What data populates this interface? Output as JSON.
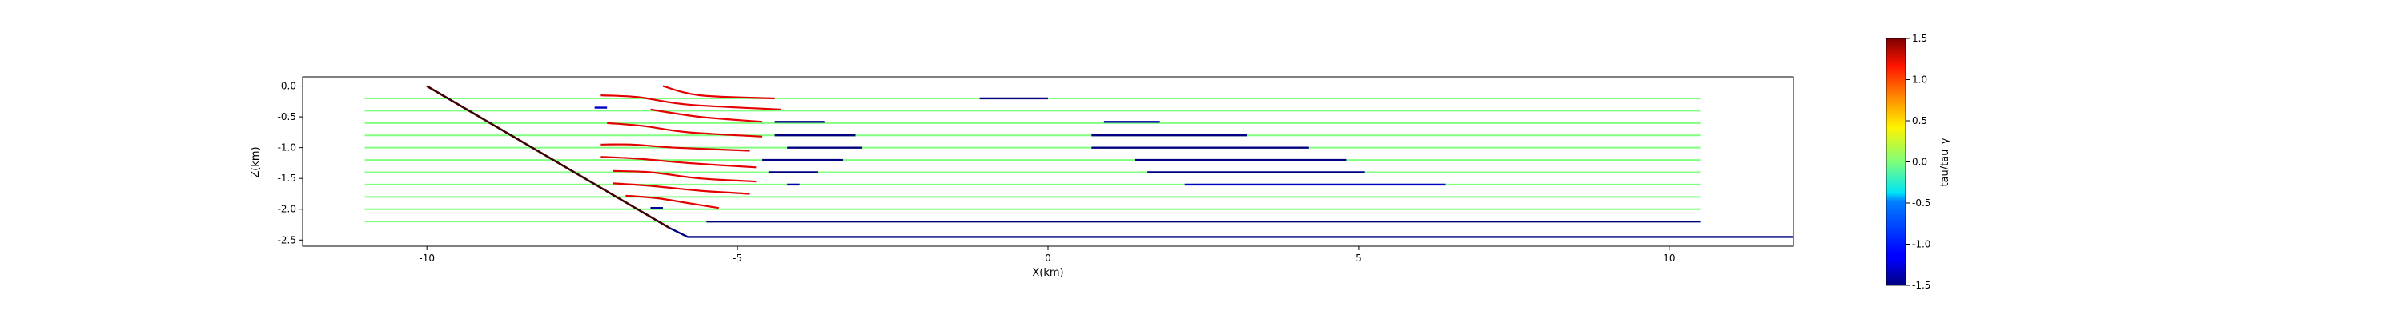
{
  "chart_data": {
    "type": "line",
    "title": "",
    "xlabel": "X(km)",
    "ylabel": "Z(km)",
    "xlim": [
      -12.0,
      12.0
    ],
    "ylim": [
      -2.6,
      0.15
    ],
    "x_ticks": [
      "-10",
      "-5",
      "0",
      "5",
      "10"
    ],
    "x_tick_values": [
      -10,
      -5,
      0,
      5,
      10
    ],
    "y_ticks": [
      "0.0",
      "-0.5",
      "-1.0",
      "-1.5",
      "-2.0",
      "-2.5"
    ],
    "y_tick_values": [
      0.0,
      -0.5,
      -1.0,
      -1.5,
      -2.0,
      -2.5
    ],
    "colorbar": {
      "label": "tau/tau_y",
      "min": -1.5,
      "max": 1.5,
      "colormap": "jet",
      "ticks": [
        "1.5",
        "1.0",
        "0.5",
        "0.0",
        "-0.5",
        "-1.0",
        "-1.5"
      ],
      "tick_values": [
        1.5,
        1.0,
        0.5,
        0.0,
        -0.5,
        -1.0,
        -1.5
      ]
    },
    "boundary": {
      "fault": {
        "points": [
          [
            -10.0,
            0.0
          ],
          [
            -6.1,
            -2.3
          ],
          [
            -5.8,
            -2.45
          ],
          [
            12.0,
            -2.45
          ]
        ],
        "value": 1.5,
        "value_lower": -1.5
      },
      "bottom_layer": {
        "points": [
          [
            -5.5,
            -2.2
          ],
          [
            10.5,
            -2.2
          ]
        ],
        "value": -1.5
      }
    },
    "background_lines": {
      "x_start": -11.0,
      "x_end": 10.5,
      "z": [
        -0.2,
        -0.4,
        -0.6,
        -0.8,
        -1.0,
        -1.2,
        -1.4,
        -1.6,
        -1.8,
        -2.0,
        -2.2
      ],
      "value": 0.0
    },
    "curved_segments": [
      {
        "points": [
          [
            -6.2,
            0.0
          ],
          [
            -5.6,
            -0.15
          ],
          [
            -4.4,
            -0.2
          ]
        ],
        "value": 1.2
      },
      {
        "points": [
          [
            -7.2,
            -0.15
          ],
          [
            -6.6,
            -0.18
          ],
          [
            -5.8,
            -0.3
          ],
          [
            -4.3,
            -0.38
          ]
        ],
        "value": 1.2
      },
      {
        "points": [
          [
            -6.4,
            -0.38
          ],
          [
            -5.6,
            -0.5
          ],
          [
            -4.6,
            -0.58
          ]
        ],
        "value": 1.2
      },
      {
        "points": [
          [
            -7.1,
            -0.6
          ],
          [
            -6.5,
            -0.65
          ],
          [
            -5.8,
            -0.75
          ],
          [
            -4.6,
            -0.82
          ]
        ],
        "value": 1.2
      },
      {
        "points": [
          [
            -7.2,
            -0.95
          ],
          [
            -6.7,
            -0.95
          ],
          [
            -6.0,
            -1.0
          ],
          [
            -4.8,
            -1.05
          ]
        ],
        "value": 1.2
      },
      {
        "points": [
          [
            -7.2,
            -1.15
          ],
          [
            -6.6,
            -1.18
          ],
          [
            -5.8,
            -1.25
          ],
          [
            -4.7,
            -1.32
          ]
        ],
        "value": 1.2
      },
      {
        "points": [
          [
            -7.0,
            -1.38
          ],
          [
            -6.4,
            -1.4
          ],
          [
            -5.6,
            -1.5
          ],
          [
            -4.7,
            -1.55
          ]
        ],
        "value": 1.2
      },
      {
        "points": [
          [
            -7.0,
            -1.58
          ],
          [
            -6.4,
            -1.62
          ],
          [
            -5.6,
            -1.7
          ],
          [
            -4.8,
            -1.75
          ]
        ],
        "value": 1.2
      },
      {
        "points": [
          [
            -6.8,
            -1.78
          ],
          [
            -6.3,
            -1.82
          ],
          [
            -5.8,
            -1.9
          ],
          [
            -5.3,
            -1.98
          ]
        ],
        "value": 1.2
      }
    ],
    "flat_segments": [
      {
        "x": [
          -1.1,
          0.0
        ],
        "z": -0.2,
        "value": -1.5
      },
      {
        "x": [
          -7.3,
          -7.1
        ],
        "z": -0.35,
        "value": -1.3
      },
      {
        "x": [
          -4.4,
          -3.6
        ],
        "z": -0.58,
        "value": -1.5
      },
      {
        "x": [
          0.9,
          1.8
        ],
        "z": -0.58,
        "value": -1.4
      },
      {
        "x": [
          -4.4,
          -3.1
        ],
        "z": -0.8,
        "value": -1.5
      },
      {
        "x": [
          0.7,
          3.2
        ],
        "z": -0.8,
        "value": -1.5
      },
      {
        "x": [
          -4.2,
          -3.0
        ],
        "z": -1.0,
        "value": -1.5
      },
      {
        "x": [
          0.7,
          4.2
        ],
        "z": -1.0,
        "value": -1.5
      },
      {
        "x": [
          -4.6,
          -3.3
        ],
        "z": -1.2,
        "value": -1.5
      },
      {
        "x": [
          1.4,
          4.8
        ],
        "z": -1.2,
        "value": -1.5
      },
      {
        "x": [
          -4.5,
          -3.7
        ],
        "z": -1.4,
        "value": -1.5
      },
      {
        "x": [
          1.6,
          5.1
        ],
        "z": -1.4,
        "value": -1.5
      },
      {
        "x": [
          -4.2,
          -4.0
        ],
        "z": -1.6,
        "value": -1.4
      },
      {
        "x": [
          2.2,
          6.4
        ],
        "z": -1.6,
        "value": -1.3
      },
      {
        "x": [
          -6.4,
          -6.2
        ],
        "z": -1.98,
        "value": -1.4
      }
    ]
  }
}
